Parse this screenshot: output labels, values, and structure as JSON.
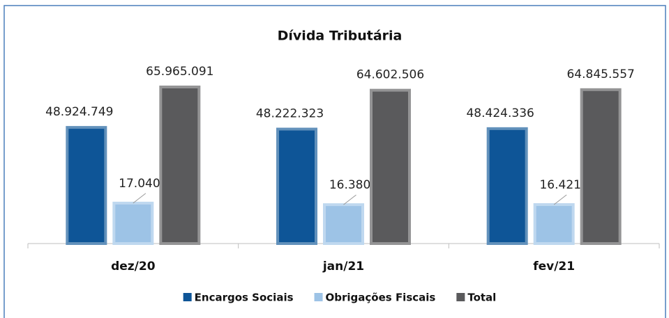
{
  "chart_data": {
    "type": "bar",
    "title": "Dívida Tributária",
    "categories": [
      "dez/20",
      "jan/21",
      "fev/21"
    ],
    "series": [
      {
        "name": "Encargos Sociais",
        "color": "#0e5597",
        "values": [
          48924749,
          48222323,
          48424336
        ],
        "value_labels": [
          "48.924.749",
          "48.222.323",
          "48.424.336"
        ]
      },
      {
        "name": "Obrigações Fiscais",
        "color": "#9dc3e6",
        "values": [
          17040343,
          16380183,
          16421221
        ],
        "value_labels": [
          "17.040.343",
          "16.380.183",
          "16.421.221"
        ]
      },
      {
        "name": "Total",
        "color": "#5a5a5c",
        "values": [
          65965091,
          64602506,
          64845557
        ],
        "value_labels": [
          "65.965.091",
          "64.602.506",
          "64.845.557"
        ]
      }
    ],
    "legend": "bottom"
  }
}
